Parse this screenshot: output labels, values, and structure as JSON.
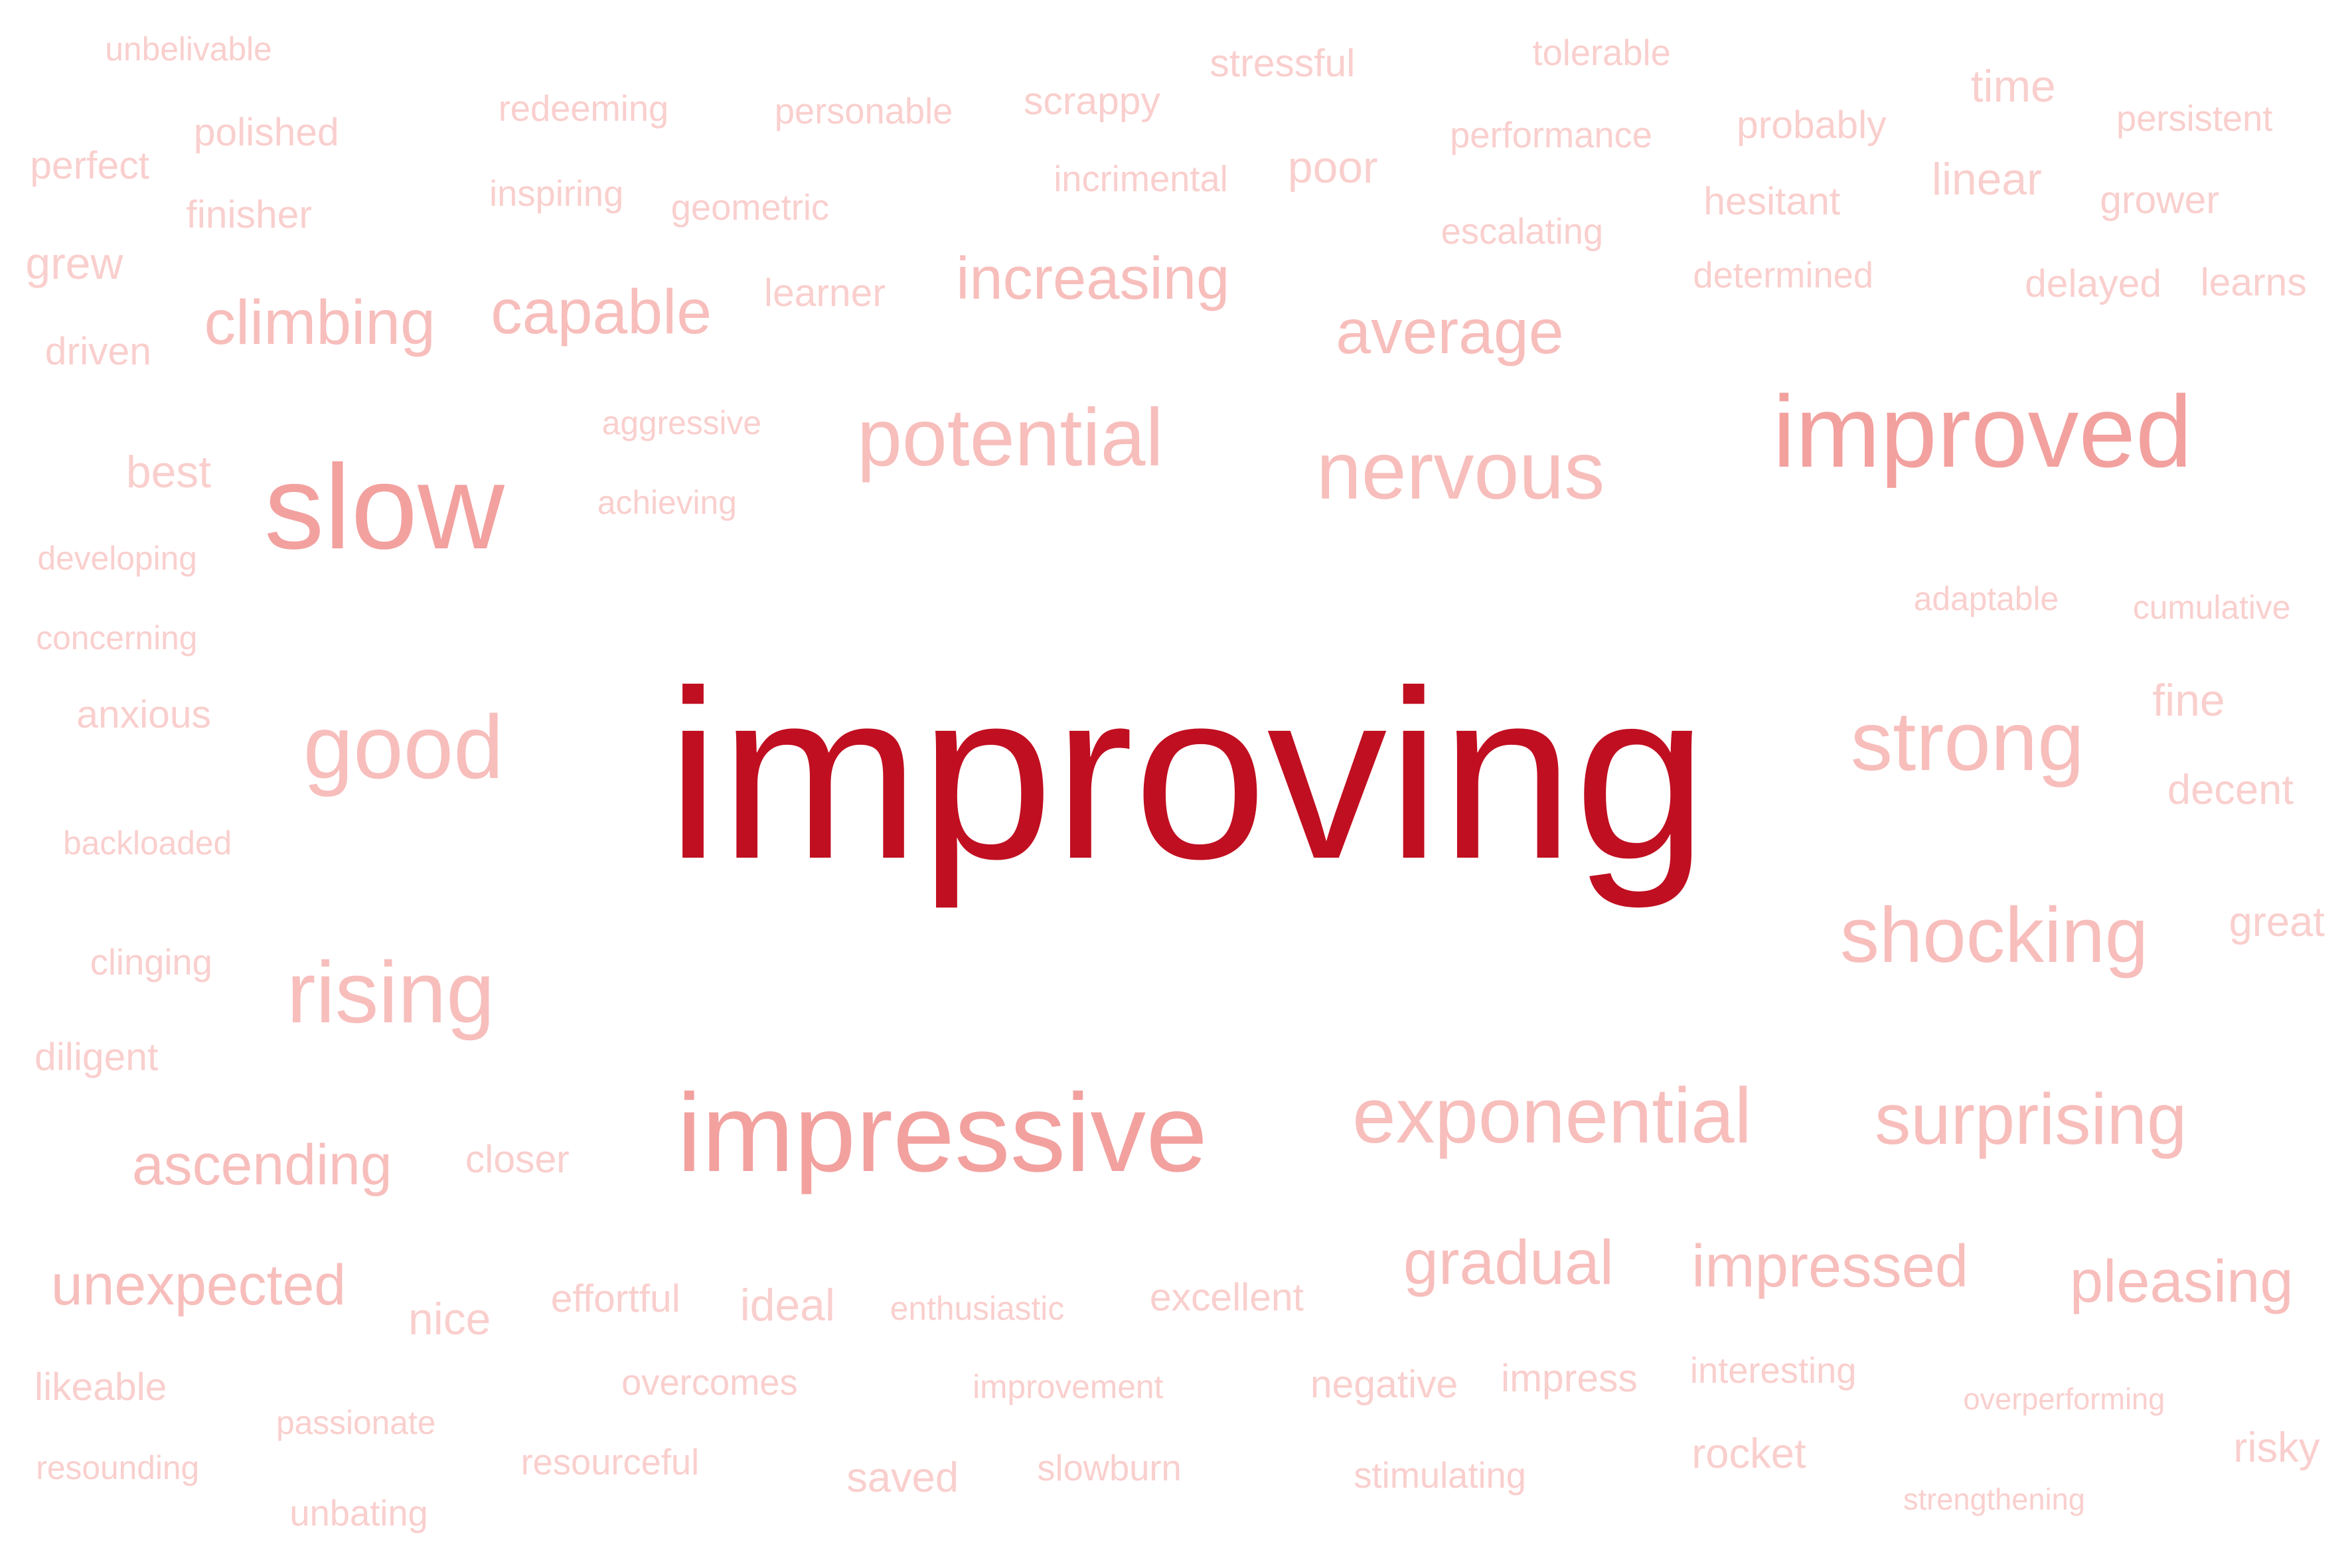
{
  "words": [
    {
      "text": "improving",
      "weight": 100,
      "color": "#c00f21"
    },
    {
      "text": "improved",
      "weight": 26,
      "color": "#f2a19f"
    },
    {
      "text": "slow",
      "weight": 25,
      "color": "#f2a19f"
    },
    {
      "text": "impressive",
      "weight": 24,
      "color": "#f2a19f"
    },
    {
      "text": "potential",
      "weight": 18,
      "color": "#f7bebc"
    },
    {
      "text": "nervous",
      "weight": 18,
      "color": "#f7bebc"
    },
    {
      "text": "good",
      "weight": 18,
      "color": "#f7bebc"
    },
    {
      "text": "strong",
      "weight": 18,
      "color": "#f7bebc"
    },
    {
      "text": "rising",
      "weight": 18,
      "color": "#f7bebc"
    },
    {
      "text": "shocking",
      "weight": 17,
      "color": "#f7bebc"
    },
    {
      "text": "exponential",
      "weight": 17,
      "color": "#f7bebc"
    },
    {
      "text": "surprising",
      "weight": 16,
      "color": "#f7bebc"
    },
    {
      "text": "average",
      "weight": 14,
      "color": "#f7bebc"
    },
    {
      "text": "increasing",
      "weight": 14,
      "color": "#f7bebc"
    },
    {
      "text": "capable",
      "weight": 14,
      "color": "#f7bebc"
    },
    {
      "text": "climbing",
      "weight": 14,
      "color": "#f7bebc"
    },
    {
      "text": "gradual",
      "weight": 14,
      "color": "#f7bebc"
    },
    {
      "text": "impressed",
      "weight": 14,
      "color": "#f7bebc"
    },
    {
      "text": "pleasing",
      "weight": 14,
      "color": "#f7bebc"
    },
    {
      "text": "ascending",
      "weight": 13,
      "color": "#f7bebc"
    },
    {
      "text": "unexpected",
      "weight": 13,
      "color": "#f7bebc"
    },
    {
      "text": "fine",
      "weight": 10,
      "color": "#f9cfcd"
    },
    {
      "text": "decent",
      "weight": 9,
      "color": "#f9cfcd"
    },
    {
      "text": "great",
      "weight": 9,
      "color": "#f9cfcd"
    },
    {
      "text": "best",
      "weight": 10,
      "color": "#f9cfcd"
    },
    {
      "text": "time",
      "weight": 10,
      "color": "#f9cfcd"
    },
    {
      "text": "linear",
      "weight": 10,
      "color": "#f9cfcd"
    },
    {
      "text": "poor",
      "weight": 10,
      "color": "#f9cfcd"
    },
    {
      "text": "grew",
      "weight": 10,
      "color": "#f9cfcd"
    },
    {
      "text": "ideal",
      "weight": 10,
      "color": "#f9cfcd"
    },
    {
      "text": "nice",
      "weight": 10,
      "color": "#f9cfcd"
    },
    {
      "text": "saved",
      "weight": 10,
      "color": "#f9cfcd"
    },
    {
      "text": "rocket",
      "weight": 9,
      "color": "#f9cfcd"
    },
    {
      "text": "risky",
      "weight": 9,
      "color": "#f9cfcd"
    },
    {
      "text": "closer",
      "weight": 9,
      "color": "#f9cfcd"
    },
    {
      "text": "perfect",
      "weight": 9,
      "color": "#f9cfcd"
    },
    {
      "text": "polished",
      "weight": 9,
      "color": "#f9cfcd"
    },
    {
      "text": "finisher",
      "weight": 9,
      "color": "#f9cfcd"
    },
    {
      "text": "driven",
      "weight": 9,
      "color": "#f9cfcd"
    },
    {
      "text": "learner",
      "weight": 9,
      "color": "#f9cfcd"
    },
    {
      "text": "hesitant",
      "weight": 9,
      "color": "#f9cfcd"
    },
    {
      "text": "grower",
      "weight": 9,
      "color": "#f9cfcd"
    },
    {
      "text": "learns",
      "weight": 9,
      "color": "#f9cfcd"
    },
    {
      "text": "scrappy",
      "weight": 9,
      "color": "#f9cfcd"
    },
    {
      "text": "stressful",
      "weight": 9,
      "color": "#f9cfcd"
    },
    {
      "text": "probably",
      "weight": 9,
      "color": "#f9cfcd"
    },
    {
      "text": "delayed",
      "weight": 9,
      "color": "#f9cfcd"
    },
    {
      "text": "anxious",
      "weight": 9,
      "color": "#f9cfcd"
    },
    {
      "text": "effortful",
      "weight": 9,
      "color": "#f9cfcd"
    },
    {
      "text": "excellent",
      "weight": 9,
      "color": "#f9cfcd"
    },
    {
      "text": "negative",
      "weight": 9,
      "color": "#f9cfcd"
    },
    {
      "text": "impress",
      "weight": 9,
      "color": "#f9cfcd"
    },
    {
      "text": "likeable",
      "weight": 9,
      "color": "#f9cfcd"
    },
    {
      "text": "diligent",
      "weight": 9,
      "color": "#f9cfcd"
    },
    {
      "text": "clinging",
      "weight": 8,
      "color": "#f9cfcd"
    },
    {
      "text": "slowburn",
      "weight": 8,
      "color": "#f9cfcd"
    },
    {
      "text": "overcomes",
      "weight": 8,
      "color": "#f9cfcd"
    },
    {
      "text": "interesting",
      "weight": 8,
      "color": "#f9cfcd"
    },
    {
      "text": "resourceful",
      "weight": 8,
      "color": "#f9cfcd"
    },
    {
      "text": "unbating",
      "weight": 8,
      "color": "#f9cfcd"
    },
    {
      "text": "stimulating",
      "weight": 8,
      "color": "#f9cfcd"
    },
    {
      "text": "inspiring",
      "weight": 8,
      "color": "#f9cfcd"
    },
    {
      "text": "redeeming",
      "weight": 8,
      "color": "#f9cfcd"
    },
    {
      "text": "personable",
      "weight": 8,
      "color": "#f9cfcd"
    },
    {
      "text": "geometric",
      "weight": 8,
      "color": "#f9cfcd"
    },
    {
      "text": "incrimental",
      "weight": 8,
      "color": "#f9cfcd"
    },
    {
      "text": "escalating",
      "weight": 8,
      "color": "#f9cfcd"
    },
    {
      "text": "tolerable",
      "weight": 8,
      "color": "#f9cfcd"
    },
    {
      "text": "performance",
      "weight": 8,
      "color": "#f9cfcd"
    },
    {
      "text": "persistent",
      "weight": 8,
      "color": "#f9cfcd"
    },
    {
      "text": "determined",
      "weight": 8,
      "color": "#f9cfcd"
    },
    {
      "text": "unbelivable",
      "weight": 8,
      "color": "#f9cfcd"
    },
    {
      "text": "aggressive",
      "weight": 8,
      "color": "#f9cfcd"
    },
    {
      "text": "achieving",
      "weight": 8,
      "color": "#f9cfcd"
    },
    {
      "text": "developing",
      "weight": 8,
      "color": "#f9cfcd"
    },
    {
      "text": "concerning",
      "weight": 8,
      "color": "#f9cfcd"
    },
    {
      "text": "backloaded",
      "weight": 8,
      "color": "#f9cfcd"
    },
    {
      "text": "adaptable",
      "weight": 8,
      "color": "#f9cfcd"
    },
    {
      "text": "cumulative",
      "weight": 8,
      "color": "#f9cfcd"
    },
    {
      "text": "enthusiastic",
      "weight": 8,
      "color": "#f9cfcd"
    },
    {
      "text": "improvement",
      "weight": 8,
      "color": "#f9cfcd"
    },
    {
      "text": "passionate",
      "weight": 8,
      "color": "#f9cfcd"
    },
    {
      "text": "resounding",
      "weight": 8,
      "color": "#f9cfcd"
    },
    {
      "text": "overperforming",
      "weight": 8,
      "color": "#f9cfcd"
    },
    {
      "text": "strengthening",
      "weight": 8,
      "color": "#f9cfcd"
    }
  ]
}
